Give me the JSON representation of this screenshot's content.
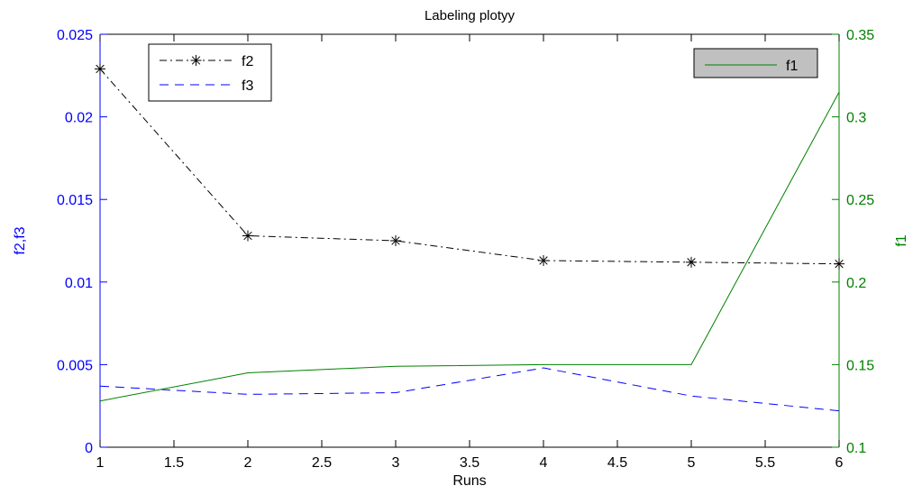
{
  "chart_data": {
    "type": "line",
    "title": "Labeling plotyy",
    "xlabel": "Runs",
    "ylabel_left": "f2,f3",
    "ylabel_right": "f1",
    "x": [
      1,
      2,
      3,
      4,
      5,
      6
    ],
    "xlim": [
      1,
      6
    ],
    "ylim_left": [
      0,
      0.025
    ],
    "ylim_right": [
      0.1,
      0.35
    ],
    "xticks": [
      "1",
      "1.5",
      "2",
      "2.5",
      "3",
      "3.5",
      "4",
      "4.5",
      "5",
      "5.5",
      "6"
    ],
    "yticks_left": [
      "0",
      "0.005",
      "0.01",
      "0.015",
      "0.02",
      "0.025"
    ],
    "yticks_right": [
      "0.1",
      "0.15",
      "0.2",
      "0.25",
      "0.3",
      "0.35"
    ],
    "grid": false,
    "series": [
      {
        "name": "f2",
        "axis": "left",
        "values": [
          0.0229,
          0.0128,
          0.0125,
          0.0113,
          0.0112,
          0.0111
        ],
        "color": "#000000",
        "style": "dash-dot",
        "marker": "asterisk"
      },
      {
        "name": "f3",
        "axis": "left",
        "values": [
          0.0037,
          0.0032,
          0.0033,
          0.0048,
          0.0031,
          0.0022
        ],
        "color": "#0000ff",
        "style": "dashed",
        "marker": "none"
      },
      {
        "name": "f1",
        "axis": "right",
        "values": [
          0.128,
          0.145,
          0.149,
          0.15,
          0.15,
          0.315
        ],
        "color": "#008000",
        "style": "solid",
        "marker": "none"
      }
    ],
    "legends": [
      {
        "placement": "top-left",
        "entries": [
          "f2",
          "f3"
        ],
        "background": "#ffffff"
      },
      {
        "placement": "top-right",
        "entries": [
          "f1"
        ],
        "background": "#c0c0c0"
      }
    ],
    "colors": {
      "left_axis": "#0000ff",
      "right_axis": "#008000",
      "text": "#000000"
    }
  }
}
